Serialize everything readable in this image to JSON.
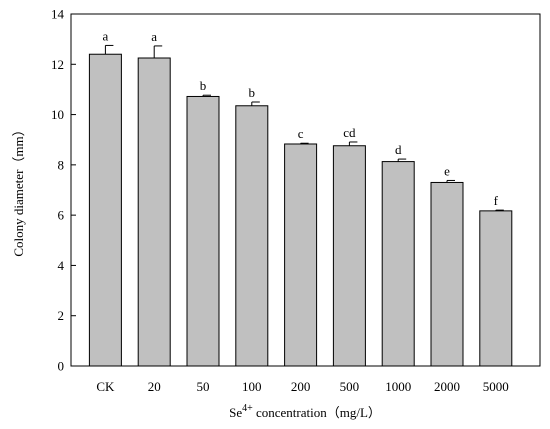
{
  "chart_data": {
    "type": "bar",
    "categories": [
      "CK",
      "20",
      "50",
      "100",
      "200",
      "500",
      "1000",
      "2000",
      "5000"
    ],
    "values": [
      12.4,
      12.25,
      10.72,
      10.35,
      8.83,
      8.76,
      8.13,
      7.3,
      6.17
    ],
    "errors": [
      0.35,
      0.48,
      0.05,
      0.15,
      0.03,
      0.15,
      0.1,
      0.08,
      0.03
    ],
    "significance": [
      "a",
      "a",
      "b",
      "b",
      "c",
      "cd",
      "d",
      "e",
      "f"
    ],
    "ylim": [
      0,
      14
    ],
    "yticks": [
      0,
      2,
      4,
      6,
      8,
      10,
      12,
      14
    ],
    "ylabel": "Colony diameter（mm）",
    "xlabel": {
      "prefix": "Se",
      "superscript": "4+",
      "suffix": " concentration（mg/L）"
    },
    "grid": false,
    "bar_color": "#c0c0c0",
    "bar_edge_color": "#000000"
  }
}
